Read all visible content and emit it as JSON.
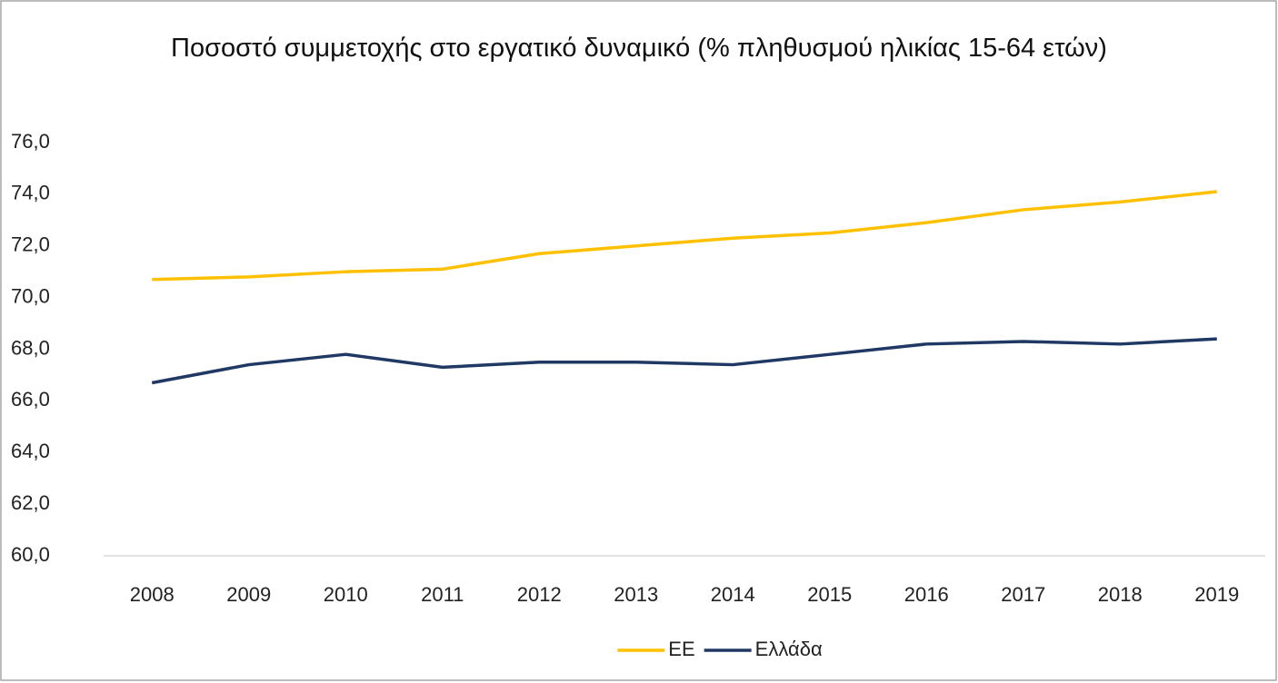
{
  "chart_data": {
    "type": "line",
    "title": "Ποσοστό συμμετοχής στο εργατικό δυναμικό (% πληθυσμού ηλικίας 15-64 ετών)",
    "categories": [
      "2008",
      "2009",
      "2010",
      "2011",
      "2012",
      "2013",
      "2014",
      "2015",
      "2016",
      "2017",
      "2018",
      "2019"
    ],
    "series": [
      {
        "name": "ΕΕ",
        "color": "#FFC000",
        "values": [
          70.7,
          70.8,
          71.0,
          71.1,
          71.7,
          72.0,
          72.3,
          72.5,
          72.9,
          73.4,
          73.7,
          74.1
        ]
      },
      {
        "name": "Ελλάδα",
        "color": "#203864",
        "values": [
          66.7,
          67.4,
          67.8,
          67.3,
          67.5,
          67.5,
          67.4,
          67.8,
          68.2,
          68.3,
          68.2,
          68.4
        ]
      }
    ],
    "ylim": [
      60,
      76
    ],
    "yticks": [
      {
        "value": 60,
        "label": "60,0"
      },
      {
        "value": 62,
        "label": "62,0"
      },
      {
        "value": 64,
        "label": "64,0"
      },
      {
        "value": 66,
        "label": "66,0"
      },
      {
        "value": 68,
        "label": "68,0"
      },
      {
        "value": 70,
        "label": "70,0"
      },
      {
        "value": 72,
        "label": "72,0"
      },
      {
        "value": 74,
        "label": "74,0"
      },
      {
        "value": 76,
        "label": "76,0"
      }
    ],
    "legend": "bottom"
  }
}
